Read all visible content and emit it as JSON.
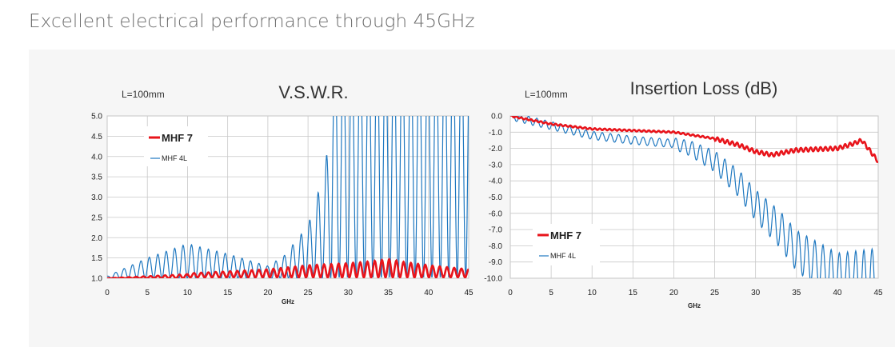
{
  "page": {
    "heading": "Excellent electrical performance through 45GHz"
  },
  "colors": {
    "mhf7": "#e8141b",
    "mhf4l": "#1f78c0",
    "grid": "#c8c8c8",
    "panel": "#f6f6f6"
  },
  "chart_data": [
    {
      "type": "line",
      "title": "V.S.W.R.",
      "annotation": "L=100mm",
      "xlabel": "GHz",
      "ylabel": "",
      "xlim": [
        0,
        45
      ],
      "ylim": [
        1.0,
        5.0
      ],
      "xticks": [
        "0",
        "5",
        "10",
        "15",
        "20",
        "25",
        "30",
        "35",
        "40",
        "45"
      ],
      "yticks": [
        "1.0",
        "1.5",
        "2.0",
        "2.5",
        "3.0",
        "3.5",
        "4.0",
        "4.5",
        "5.0"
      ],
      "grid": true,
      "legend_position": "top-left",
      "series": [
        {
          "name": "MHF 7",
          "color": "#e8141b",
          "x": [
            0,
            5,
            10,
            15,
            20,
            25,
            30,
            33,
            35,
            37,
            40,
            45
          ],
          "y": [
            1.0,
            1.05,
            1.1,
            1.15,
            1.2,
            1.3,
            1.35,
            1.4,
            1.45,
            1.38,
            1.3,
            1.2
          ]
        },
        {
          "name": "MHF 4L",
          "color": "#1f78c0",
          "x": [
            0,
            5,
            10,
            15,
            20,
            22,
            25,
            27,
            28,
            30,
            35,
            40,
            45
          ],
          "y": [
            1.05,
            1.5,
            1.85,
            1.6,
            1.3,
            1.55,
            2.3,
            3.6,
            5.0,
            5.0,
            5.0,
            5.0,
            5.0
          ]
        }
      ]
    },
    {
      "type": "line",
      "title": "Insertion Loss (dB)",
      "annotation": "L=100mm",
      "xlabel": "GHz",
      "ylabel": "",
      "xlim": [
        0,
        45
      ],
      "ylim": [
        -10.0,
        0.0
      ],
      "xticks": [
        "0",
        "5",
        "10",
        "15",
        "20",
        "25",
        "30",
        "35",
        "40",
        "45"
      ],
      "yticks": [
        "0.0",
        "-1.0",
        "-2.0",
        "-3.0",
        "-4.0",
        "-5.0",
        "-6.0",
        "-7.0",
        "-8.0",
        "-9.0",
        "-10.0"
      ],
      "grid": true,
      "legend_position": "bottom-left",
      "series": [
        {
          "name": "MHF 7",
          "color": "#e8141b",
          "x": [
            0,
            5,
            10,
            15,
            20,
            25,
            28,
            30,
            32,
            35,
            40,
            42,
            43,
            45
          ],
          "y": [
            0.0,
            -0.5,
            -0.8,
            -0.9,
            -1.0,
            -1.4,
            -1.8,
            -2.2,
            -2.4,
            -2.1,
            -2.0,
            -1.7,
            -1.5,
            -2.8
          ]
        },
        {
          "name": "MHF 4L",
          "color": "#1f78c0",
          "x": [
            0,
            5,
            10,
            15,
            20,
            22,
            25,
            28,
            30,
            33,
            35,
            38,
            40,
            42,
            45
          ],
          "y": [
            0.0,
            -0.6,
            -1.2,
            -1.5,
            -1.7,
            -2.0,
            -2.8,
            -4.2,
            -5.5,
            -7.0,
            -8.3,
            -9.3,
            -10.0,
            -10.0,
            -10.0
          ]
        }
      ]
    }
  ]
}
